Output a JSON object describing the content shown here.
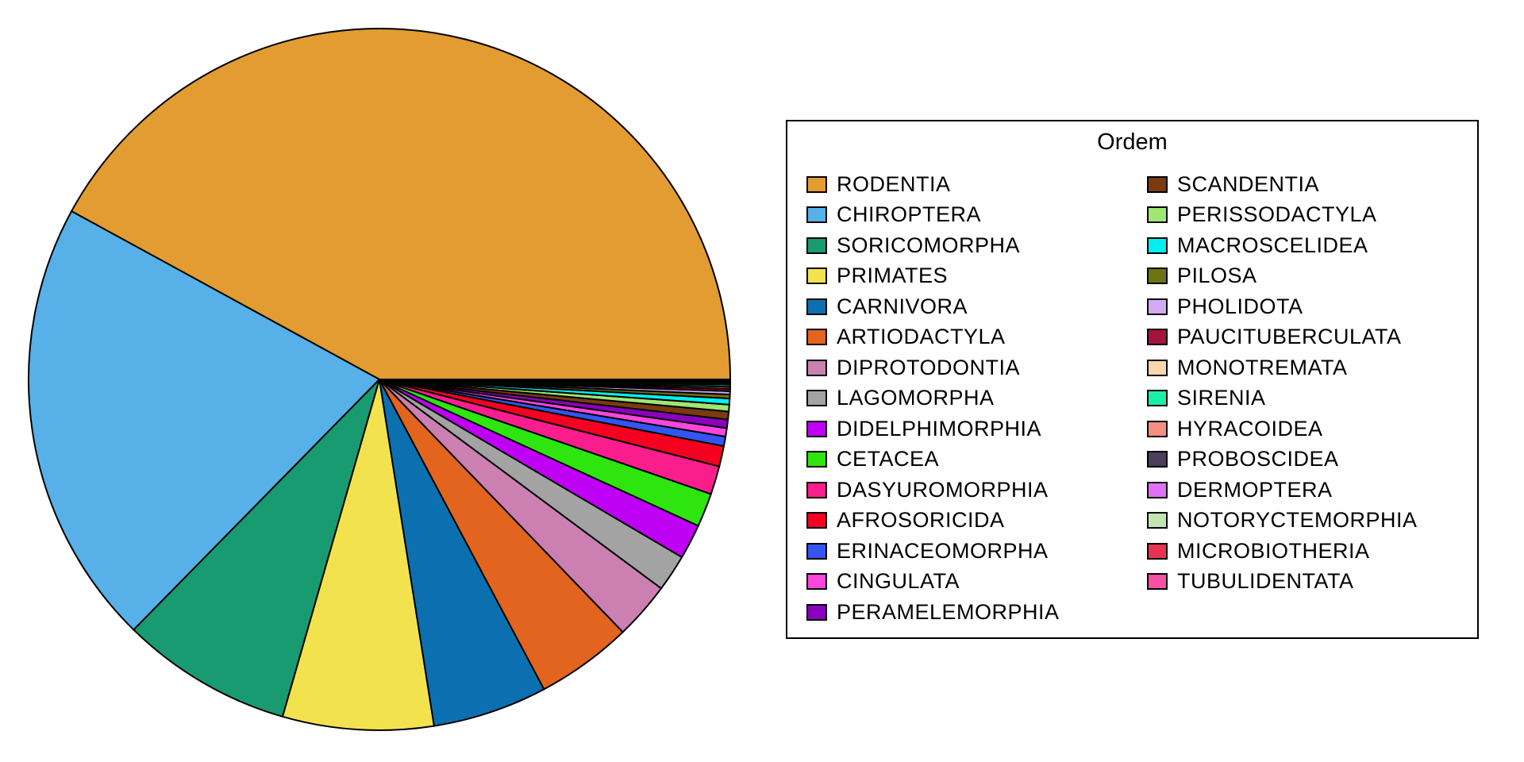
{
  "legend": {
    "title": "Ordem"
  },
  "chart_data": {
    "type": "pie",
    "title": "Ordem",
    "legend_position": "right",
    "legend_border": true,
    "start_angle_deg": 0,
    "direction": "counterclockwise",
    "slice_border_color": "#000000",
    "background_color": "#ffffff",
    "total": 5416,
    "legend_columns": [
      15,
      14
    ],
    "labels": [
      "RODENTIA",
      "CHIROPTERA",
      "SORICOMORPHA",
      "PRIMATES",
      "CARNIVORA",
      "ARTIODACTYLA",
      "DIPROTODONTIA",
      "LAGOMORPHA",
      "DIDELPHIMORPHIA",
      "CETACEA",
      "DASYUROMORPHIA",
      "AFROSORICIDA",
      "ERINACEOMORPHA",
      "CINGULATA",
      "PERAMELEMORPHIA",
      "SCANDENTIA",
      "PERISSODACTYLA",
      "MACROSCELIDEA",
      "PILOSA",
      "PHOLIDOTA",
      "PAUCITUBERCULATA",
      "MONOTREMATA",
      "SIRENIA",
      "HYRACOIDEA",
      "PROBOSCIDEA",
      "DERMOPTERA",
      "NOTORYCTEMORPHIA",
      "MICROBIOTHERIA",
      "TUBULIDENTATA"
    ],
    "values": [
      2277,
      1116,
      428,
      376,
      286,
      240,
      143,
      92,
      87,
      84,
      71,
      51,
      24,
      21,
      21,
      20,
      17,
      15,
      10,
      8,
      6,
      5,
      5,
      4,
      3,
      2,
      2,
      1,
      1
    ],
    "colors": [
      "#E39C32",
      "#57B1E8",
      "#189B70",
      "#F2E34E",
      "#0C70B0",
      "#E2641F",
      "#CC80B2",
      "#A3A3A3",
      "#BE00F5",
      "#2EE50F",
      "#FA1E8C",
      "#F50021",
      "#3355F2",
      "#FA46DC",
      "#8A00BE",
      "#7A3B10",
      "#A0E673",
      "#00F0F0",
      "#6E7310",
      "#D4AAF5",
      "#A3143C",
      "#FAD7A8",
      "#19F0A5",
      "#F58E80",
      "#4A3E5C",
      "#E070F5",
      "#C3E6B0",
      "#E83251",
      "#F750A5"
    ]
  }
}
